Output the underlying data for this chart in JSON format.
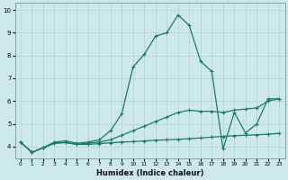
{
  "xlabel": "Humidex (Indice chaleur)",
  "bg_color": "#cce8e8",
  "grid_color": "#b8d4d4",
  "line_color": "#1a7a6a",
  "xlim": [
    -0.5,
    23.5
  ],
  "ylim": [
    3.5,
    10.3
  ],
  "xticks": [
    0,
    1,
    2,
    3,
    4,
    5,
    6,
    7,
    8,
    9,
    10,
    11,
    12,
    13,
    14,
    15,
    16,
    17,
    18,
    19,
    20,
    21,
    22,
    23
  ],
  "yticks": [
    4,
    5,
    6,
    7,
    8,
    9,
    10
  ],
  "line_spike_x": [
    0,
    1,
    2,
    3,
    4,
    5,
    6,
    7,
    8,
    9,
    10,
    11,
    12,
    13,
    14,
    15,
    16,
    17,
    18,
    19,
    20,
    21,
    22,
    23
  ],
  "line_spike_y": [
    4.2,
    3.75,
    3.95,
    4.2,
    4.25,
    4.15,
    4.2,
    4.3,
    4.7,
    5.45,
    7.5,
    8.05,
    8.85,
    9.0,
    9.78,
    9.32,
    7.75,
    7.3,
    3.9,
    5.5,
    4.6,
    5.0,
    6.1,
    6.1
  ],
  "line_flat_x": [
    0,
    1,
    2,
    3,
    4,
    5,
    6,
    7,
    8,
    9,
    10,
    11,
    12,
    13,
    14,
    15,
    16,
    17,
    18,
    19,
    20,
    21,
    22,
    23
  ],
  "line_flat_y": [
    4.2,
    3.75,
    3.95,
    4.15,
    4.18,
    4.1,
    4.1,
    4.13,
    4.17,
    4.2,
    4.22,
    4.25,
    4.28,
    4.3,
    4.32,
    4.35,
    4.38,
    4.42,
    4.45,
    4.48,
    4.5,
    4.52,
    4.55,
    4.58
  ],
  "line_mid_x": [
    0,
    1,
    2,
    3,
    4,
    5,
    6,
    7,
    8,
    9,
    10,
    11,
    12,
    13,
    14,
    15,
    16,
    17,
    18,
    19,
    20,
    21,
    22,
    23
  ],
  "line_mid_y": [
    4.2,
    3.75,
    3.95,
    4.15,
    4.18,
    4.1,
    4.15,
    4.2,
    4.3,
    4.5,
    4.7,
    4.9,
    5.1,
    5.3,
    5.5,
    5.6,
    5.55,
    5.55,
    5.5,
    5.6,
    5.65,
    5.7,
    6.0,
    6.1
  ]
}
